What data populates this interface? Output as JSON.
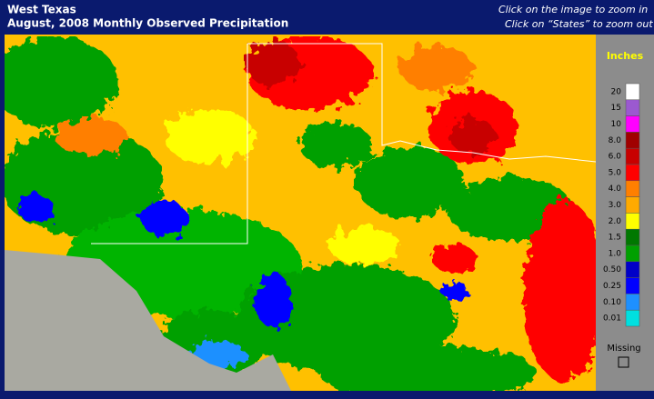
{
  "header": {
    "title": "West Texas",
    "subtitle": "August, 2008 Monthly Observed Precipitation",
    "instructions": [
      "Click on the image to zoom in",
      "Click on “States” to zoom out"
    ]
  },
  "legend": {
    "title": "Inches",
    "items": [
      {
        "label": "20",
        "color": "#ffffff"
      },
      {
        "label": "15",
        "color": "#9b59d0"
      },
      {
        "label": "10",
        "color": "#ff00ff"
      },
      {
        "label": "8.0",
        "color": "#a00000"
      },
      {
        "label": "6.0",
        "color": "#c80000"
      },
      {
        "label": "5.0",
        "color": "#ff0000"
      },
      {
        "label": "4.0",
        "color": "#ff7f00"
      },
      {
        "label": "3.0",
        "color": "#ffaa00"
      },
      {
        "label": "2.0",
        "color": "#ffff00"
      },
      {
        "label": "1.5",
        "color": "#007800"
      },
      {
        "label": "1.0",
        "color": "#00a000"
      },
      {
        "label": "0.50",
        "color": "#0000c8"
      },
      {
        "label": "0.25",
        "color": "#0000ff"
      },
      {
        "label": "0.10",
        "color": "#1e90ff"
      },
      {
        "label": "0.01",
        "color": "#00e0e0"
      }
    ],
    "missing": "Missing"
  }
}
